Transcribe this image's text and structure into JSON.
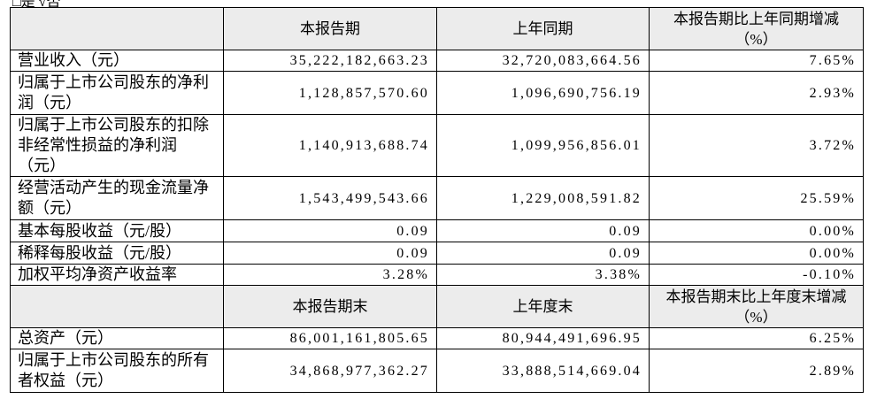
{
  "top_note": "□是 √否",
  "sections": [
    {
      "header": [
        "本报告期",
        "上年同期",
        "本报告期比上年同期增减\n（%）"
      ],
      "rows": [
        [
          "营业收入（元）",
          "35,222,182,663.23",
          "32,720,083,664.56",
          "7.65%"
        ],
        [
          "归属于上市公司股东的净利润（元）",
          "1,128,857,570.60",
          "1,096,690,756.19",
          "2.93%"
        ],
        [
          "归属于上市公司股东的扣除非经常性损益的净利润（元）",
          "1,140,913,688.74",
          "1,099,956,856.01",
          "3.72%"
        ],
        [
          "经营活动产生的现金流量净额（元）",
          "1,543,499,543.66",
          "1,229,008,591.82",
          "25.59%"
        ],
        [
          "基本每股收益（元/股）",
          "0.09",
          "0.09",
          "0.00%"
        ],
        [
          "稀释每股收益（元/股）",
          "0.09",
          "0.09",
          "0.00%"
        ],
        [
          "加权平均净资产收益率",
          "3.28%",
          "3.38%",
          "-0.10%"
        ]
      ]
    },
    {
      "header": [
        "本报告期末",
        "上年度末",
        "本报告期末比上年度末增减\n（%）"
      ],
      "rows": [
        [
          "总资产（元）",
          "86,001,161,805.65",
          "80,944,491,696.95",
          "6.25%"
        ],
        [
          "归属于上市公司股东的所有者权益（元）",
          "34,868,977,362.27",
          "33,888,514,669.04",
          "2.89%"
        ]
      ]
    }
  ]
}
